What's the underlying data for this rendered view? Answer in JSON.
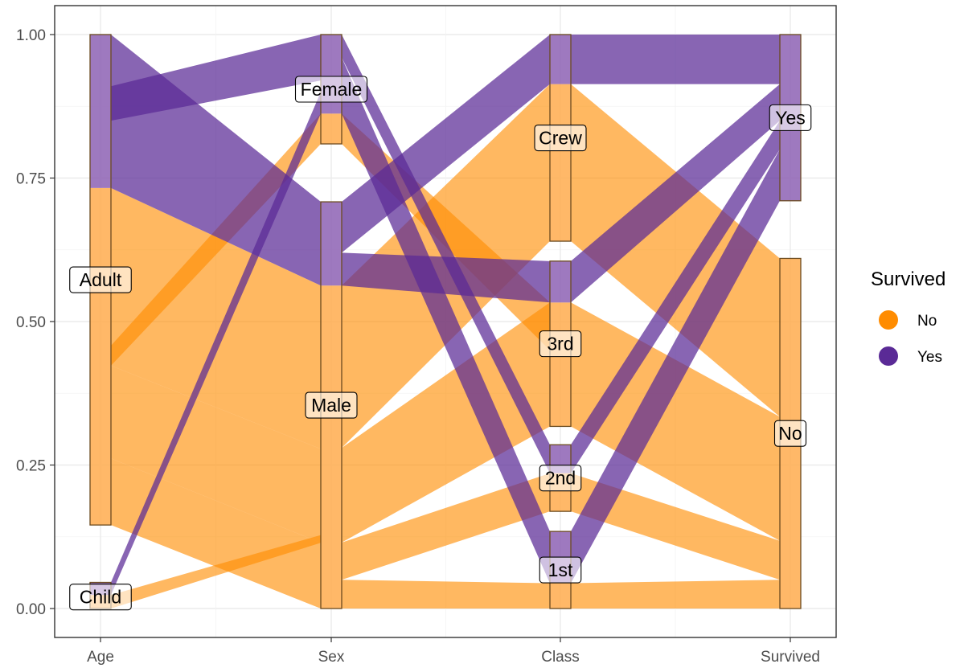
{
  "chart_data": {
    "type": "parallel-sets",
    "xlabel": "",
    "ylabel": "",
    "ylim": [
      0,
      1
    ],
    "y_ticks": [
      "0.00",
      "0.25",
      "0.50",
      "0.75",
      "1.00"
    ],
    "axes": [
      "Age",
      "Sex",
      "Class",
      "Survived"
    ],
    "grid": true,
    "legend": {
      "title": "Survived",
      "placement": "right",
      "entries": [
        {
          "label": "No",
          "color": "#ff8c00"
        },
        {
          "label": "Yes",
          "color": "#5a2a96"
        }
      ]
    },
    "colors": {
      "No": "#ff8c00",
      "Yes": "#5a2a96"
    },
    "axis_levels": {
      "Age": [
        "Child",
        "Adult"
      ],
      "Sex": [
        "Male",
        "Female"
      ],
      "Class": [
        "1st",
        "2nd",
        "3rd",
        "Crew"
      ],
      "Survived": [
        "No",
        "Yes"
      ]
    },
    "nodes": [
      {
        "axis": "Age",
        "label": "Adult",
        "y0": 0.1455,
        "y1": 1.0,
        "fill_no_top": 0.7327
      },
      {
        "axis": "Age",
        "label": "Child",
        "y0": 0.0,
        "y1": 0.0455,
        "fill_no_top": 0.0236
      },
      {
        "axis": "Sex",
        "label": "Male",
        "y0": 0.0,
        "y1": 0.7086,
        "fill_no_top": 0.5627
      },
      {
        "axis": "Sex",
        "label": "Female",
        "y0": 0.8095,
        "y1": 1.0,
        "fill_no_top": 0.8623
      },
      {
        "axis": "Class",
        "label": "1st",
        "y0": 0.0,
        "y1": 0.1343,
        "fill_no_top": 0.0441
      },
      {
        "axis": "Class",
        "label": "2nd",
        "y0": 0.1693,
        "y1": 0.2853,
        "fill_no_top": 0.2357
      },
      {
        "axis": "Class",
        "label": "3rd",
        "y0": 0.3173,
        "y1": 0.6053,
        "fill_no_top": 0.5332
      },
      {
        "axis": "Class",
        "label": "Crew",
        "y0": 0.64,
        "y1": 1.0,
        "fill_no_top": 0.9137
      },
      {
        "axis": "Survived",
        "label": "No",
        "y0": 0.0,
        "y1": 0.61,
        "fill_no_top": 0.61
      },
      {
        "axis": "Survived",
        "label": "Yes",
        "y0": 0.7104,
        "y1": 1.0,
        "fill_no_top": 0.7104
      }
    ],
    "ribbons": [
      {
        "survived": "No",
        "from": "Age",
        "to": "Sex",
        "a": [
          0.1455,
          0.2615
        ],
        "b": [
          0.0,
          0.1145
        ]
      },
      {
        "survived": "No",
        "from": "Age",
        "to": "Sex",
        "a": [
          0.2615,
          0.4231
        ],
        "b": [
          0.1145,
          0.278
        ]
      },
      {
        "survived": "No",
        "from": "Age",
        "to": "Sex",
        "a": [
          0.4231,
          0.7327
        ],
        "b": [
          0.278,
          0.5627
        ]
      },
      {
        "survived": "No",
        "from": "Age",
        "to": "Sex",
        "a": [
          0.4231,
          0.458
        ],
        "b": [
          0.8095,
          0.8623
        ]
      },
      {
        "survived": "No",
        "from": "Age",
        "to": "Sex",
        "a": [
          0.0,
          0.0236
        ],
        "b": [
          0.1145,
          0.128
        ]
      },
      {
        "survived": "Yes",
        "from": "Age",
        "to": "Sex",
        "a": [
          0.7327,
          1.0
        ],
        "b": [
          0.5627,
          0.7086
        ]
      },
      {
        "survived": "Yes",
        "from": "Age",
        "to": "Sex",
        "a": [
          0.85,
          0.91
        ],
        "b": [
          0.92,
          1.0
        ]
      },
      {
        "survived": "Yes",
        "from": "Age",
        "to": "Sex",
        "a": [
          0.0236,
          0.0455
        ],
        "b": [
          0.8623,
          0.9
        ]
      },
      {
        "survived": "No",
        "from": "Sex",
        "to": "Class",
        "a": [
          0.0,
          0.05
        ],
        "b": [
          0.0,
          0.0441
        ]
      },
      {
        "survived": "No",
        "from": "Sex",
        "to": "Class",
        "a": [
          0.05,
          0.115
        ],
        "b": [
          0.1693,
          0.2357
        ]
      },
      {
        "survived": "No",
        "from": "Sex",
        "to": "Class",
        "a": [
          0.115,
          0.28
        ],
        "b": [
          0.3173,
          0.5332
        ]
      },
      {
        "survived": "No",
        "from": "Sex",
        "to": "Class",
        "a": [
          0.28,
          0.5627
        ],
        "b": [
          0.64,
          0.9137
        ]
      },
      {
        "survived": "No",
        "from": "Sex",
        "to": "Class",
        "a": [
          0.8095,
          0.8623
        ],
        "b": [
          0.45,
          0.5332
        ]
      },
      {
        "survived": "Yes",
        "from": "Sex",
        "to": "Class",
        "a": [
          0.5627,
          0.62
        ],
        "b": [
          0.5332,
          0.6053
        ]
      },
      {
        "survived": "Yes",
        "from": "Sex",
        "to": "Class",
        "a": [
          0.62,
          0.7086
        ],
        "b": [
          0.9137,
          1.0
        ]
      },
      {
        "survived": "Yes",
        "from": "Sex",
        "to": "Class",
        "a": [
          0.8623,
          0.96
        ],
        "b": [
          0.0441,
          0.1343
        ]
      },
      {
        "survived": "Yes",
        "from": "Sex",
        "to": "Class",
        "a": [
          0.96,
          1.0
        ],
        "b": [
          0.2357,
          0.2853
        ]
      },
      {
        "survived": "No",
        "from": "Class",
        "to": "Survived",
        "a": [
          0.0,
          0.0441
        ],
        "b": [
          0.0,
          0.05
        ]
      },
      {
        "survived": "No",
        "from": "Class",
        "to": "Survived",
        "a": [
          0.1693,
          0.2357
        ],
        "b": [
          0.05,
          0.118
        ]
      },
      {
        "survived": "No",
        "from": "Class",
        "to": "Survived",
        "a": [
          0.3173,
          0.5332
        ],
        "b": [
          0.118,
          0.334
        ]
      },
      {
        "survived": "No",
        "from": "Class",
        "to": "Survived",
        "a": [
          0.64,
          0.9137
        ],
        "b": [
          0.334,
          0.61
        ]
      },
      {
        "survived": "Yes",
        "from": "Class",
        "to": "Survived",
        "a": [
          0.0441,
          0.1343
        ],
        "b": [
          0.7104,
          0.8
        ]
      },
      {
        "survived": "Yes",
        "from": "Class",
        "to": "Survived",
        "a": [
          0.2357,
          0.2853
        ],
        "b": [
          0.8,
          0.85
        ]
      },
      {
        "survived": "Yes",
        "from": "Class",
        "to": "Survived",
        "a": [
          0.5332,
          0.6053
        ],
        "b": [
          0.85,
          0.9137
        ]
      },
      {
        "survived": "Yes",
        "from": "Class",
        "to": "Survived",
        "a": [
          0.9137,
          1.0
        ],
        "b": [
          0.9137,
          1.0
        ]
      }
    ]
  }
}
